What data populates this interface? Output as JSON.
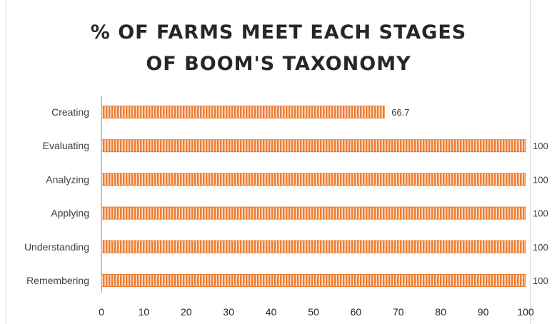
{
  "chart_data": {
    "type": "bar",
    "orientation": "horizontal",
    "title_lines": [
      "% OF FARMS MEET EACH STAGES",
      "OF BOOM'S TAXONOMY"
    ],
    "categories": [
      "Creating",
      "Evaluating",
      "Analyzing",
      "Applying",
      "Understanding",
      "Remembering"
    ],
    "values": [
      66.7,
      100,
      100,
      100,
      100,
      100
    ],
    "data_labels": [
      "66.7",
      "100",
      "100",
      "100",
      "100",
      "100"
    ],
    "xlim": [
      0,
      100
    ],
    "xticks": [
      "0",
      "10",
      "20",
      "30",
      "40",
      "50",
      "60",
      "70",
      "80",
      "90",
      "100"
    ],
    "bar_color": "#ed7d31",
    "bar_pattern": "vertical-stripes",
    "grid": false,
    "legend": "none"
  }
}
